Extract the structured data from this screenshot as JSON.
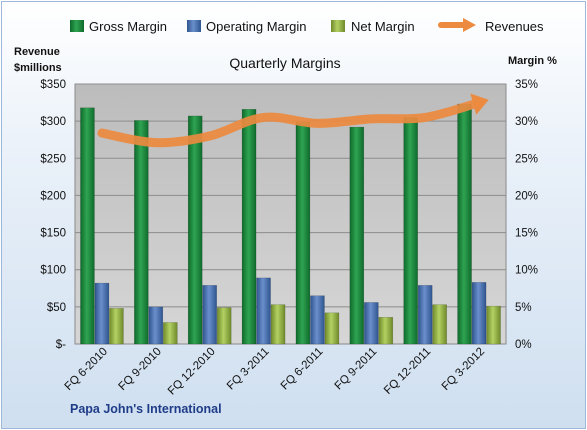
{
  "chart_data": {
    "type": "bar",
    "title": "Quarterly Margins",
    "footer": "Papa John's International",
    "left_axis": {
      "label_line1": "Revenue",
      "label_line2": "$millions",
      "ylim": [
        0,
        350
      ],
      "ticks": [
        {
          "v": 0,
          "label": "$-"
        },
        {
          "v": 50,
          "label": "$50"
        },
        {
          "v": 100,
          "label": "$100"
        },
        {
          "v": 150,
          "label": "$150"
        },
        {
          "v": 200,
          "label": "$200"
        },
        {
          "v": 250,
          "label": "$250"
        },
        {
          "v": 300,
          "label": "$300"
        },
        {
          "v": 350,
          "label": "$350"
        }
      ]
    },
    "right_axis": {
      "label": "Margin %",
      "ylim": [
        0,
        35
      ],
      "ticks": [
        {
          "v": 0,
          "label": "0%"
        },
        {
          "v": 5,
          "label": "5%"
        },
        {
          "v": 10,
          "label": "10%"
        },
        {
          "v": 15,
          "label": "15%"
        },
        {
          "v": 20,
          "label": "20%"
        },
        {
          "v": 25,
          "label": "25%"
        },
        {
          "v": 30,
          "label": "30%"
        },
        {
          "v": 35,
          "label": "35%"
        }
      ]
    },
    "categories": [
      "FQ 6-2010",
      "FQ 9-2010",
      "FQ 12-2010",
      "FQ 3-2011",
      "FQ 6-2011",
      "FQ 9-2011",
      "FQ 12-2011",
      "FQ 3-2012"
    ],
    "series": [
      {
        "name": "Gross Margin",
        "axis": "right",
        "color": "#1e8a3e",
        "values": [
          31.8,
          30.1,
          30.7,
          31.6,
          29.9,
          29.2,
          30.5,
          32.3
        ]
      },
      {
        "name": "Operating Margin",
        "axis": "right",
        "color": "#4a74b4",
        "values": [
          8.2,
          5.0,
          7.9,
          8.9,
          6.5,
          5.6,
          7.9,
          8.3
        ]
      },
      {
        "name": "Net Margin",
        "axis": "right",
        "color": "#9bbb4a",
        "values": [
          4.8,
          2.9,
          4.9,
          5.3,
          4.2,
          3.6,
          5.3,
          5.1
        ]
      }
    ],
    "line_series": {
      "name": "Revenues",
      "axis": "left",
      "color": "#ec8a3f",
      "values": [
        284,
        271,
        280,
        305,
        297,
        303,
        305,
        325
      ]
    },
    "grid": true,
    "legend_position": "top"
  }
}
